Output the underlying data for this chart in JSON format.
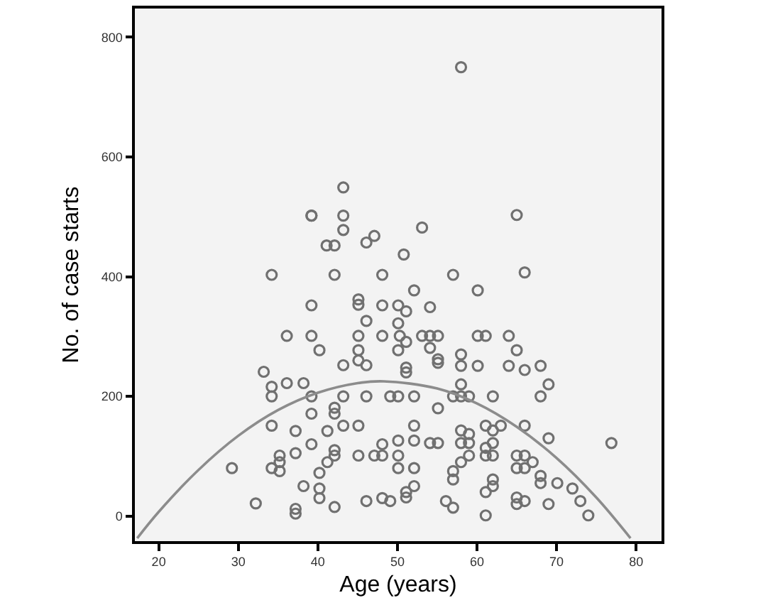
{
  "chart_data": {
    "type": "scatter",
    "xlabel": "Age (years)",
    "ylabel": "No. of case starts",
    "xlim": [
      17,
      83.2
    ],
    "ylim": [
      -42,
      848
    ],
    "xticks": [
      20,
      30,
      40,
      50,
      60,
      70,
      80
    ],
    "yticks": [
      0,
      200,
      400,
      600,
      800
    ],
    "grid": false,
    "marker": "none",
    "series": [
      {
        "marker": "circle",
        "color": "#707070",
        "x": [
          58.0,
          43.2,
          39.2,
          39.2,
          43.2,
          43.2,
          41.1,
          42.1,
          46.1,
          47.1,
          50.8,
          34.2,
          42.1,
          48.1,
          65.0,
          53.1,
          57.0,
          66.0,
          45.1,
          45.1,
          39.2,
          48.1,
          50.1,
          46.1,
          50.1,
          36.1,
          39.2,
          45.1,
          48.1,
          40.2,
          45.1,
          50.1,
          45.1,
          43.2,
          46.1,
          33.2,
          36.1,
          38.2,
          34.2,
          34.2,
          39.2,
          43.2,
          46.1,
          49.1,
          50.1,
          42.1,
          39.2,
          42.1,
          34.2,
          43.2,
          45.1,
          37.2,
          41.2,
          50.1,
          39.2,
          48.1,
          42.1,
          37.2,
          35.2,
          42.1,
          45.1,
          47.1,
          48.1,
          50.1,
          41.2,
          35.2,
          29.2,
          34.2,
          50.1,
          35.2,
          40.2,
          38.2,
          40.2,
          40.2,
          48.1,
          46.1,
          49.1,
          32.2,
          42.1,
          37.2,
          37.2,
          52.1,
          60.1,
          51.1,
          54.1,
          50.3,
          53.1,
          54.1,
          55.1,
          60.1,
          61.1,
          64.0,
          51.1,
          54.1,
          65.0,
          58.0,
          55.1,
          55.1,
          58.0,
          60.1,
          64.0,
          68.0,
          51.1,
          51.1,
          66.0,
          58.0,
          69.0,
          52.1,
          57.0,
          58.0,
          59.0,
          62.0,
          68.0,
          55.1,
          52.1,
          61.1,
          63.0,
          66.0,
          58.0,
          62.0,
          59.0,
          69.0,
          52.1,
          54.1,
          55.1,
          58.0,
          59.0,
          62.0,
          76.9,
          61.1,
          59.0,
          61.1,
          62.0,
          65.0,
          66.0,
          58.0,
          67.0,
          52.1,
          65.0,
          66.0,
          57.0,
          68.0,
          57.0,
          62.0,
          68.0,
          70.1,
          52.1,
          62.0,
          72.0,
          51.1,
          61.1,
          51.1,
          65.0,
          56.1,
          66.0,
          73.0,
          65.0,
          69.0,
          57.0,
          61.1,
          74.0
        ],
        "values": [
          750,
          549,
          502,
          502,
          502,
          478,
          452,
          452,
          457,
          468,
          437,
          403,
          403,
          403,
          503,
          482,
          403,
          407,
          362,
          353,
          352,
          352,
          352,
          326,
          322,
          301,
          301,
          301,
          301,
          277,
          277,
          277,
          260,
          252,
          252,
          241,
          222,
          222,
          216,
          200,
          200,
          200,
          200,
          200,
          200,
          181,
          171,
          171,
          151,
          151,
          151,
          142,
          142,
          126,
          120,
          120,
          110,
          105,
          101,
          101,
          101,
          101,
          101,
          101,
          90,
          90,
          80,
          80,
          80,
          75,
          72,
          50,
          46,
          30,
          30,
          25,
          25,
          21,
          15,
          12,
          4,
          377,
          377,
          342,
          349,
          301,
          301,
          301,
          301,
          301,
          301,
          301,
          291,
          281,
          277,
          270,
          262,
          256,
          251,
          251,
          251,
          251,
          248,
          240,
          244,
          220,
          220,
          200,
          200,
          200,
          200,
          200,
          200,
          180,
          151,
          151,
          151,
          151,
          143,
          143,
          137,
          130,
          126,
          122,
          122,
          122,
          122,
          122,
          122,
          114,
          101,
          101,
          101,
          101,
          101,
          90,
          90,
          80,
          80,
          80,
          75,
          67,
          61,
          61,
          55,
          55,
          50,
          50,
          46,
          40,
          40,
          31,
          31,
          25,
          25,
          25,
          20,
          20,
          14,
          1,
          1
        ]
      },
      {
        "type": "line",
        "color": "#8c8c8c",
        "line_style": "solid",
        "x": [
          17.3,
          20,
          25,
          30,
          35,
          40,
          45,
          48.3,
          55,
          60,
          65,
          70,
          75,
          79.3
        ],
        "values": [
          -37,
          7,
          77,
          134,
          177,
          206,
          222,
          225,
          213,
          188,
          149,
          97,
          31,
          -37
        ]
      }
    ]
  }
}
